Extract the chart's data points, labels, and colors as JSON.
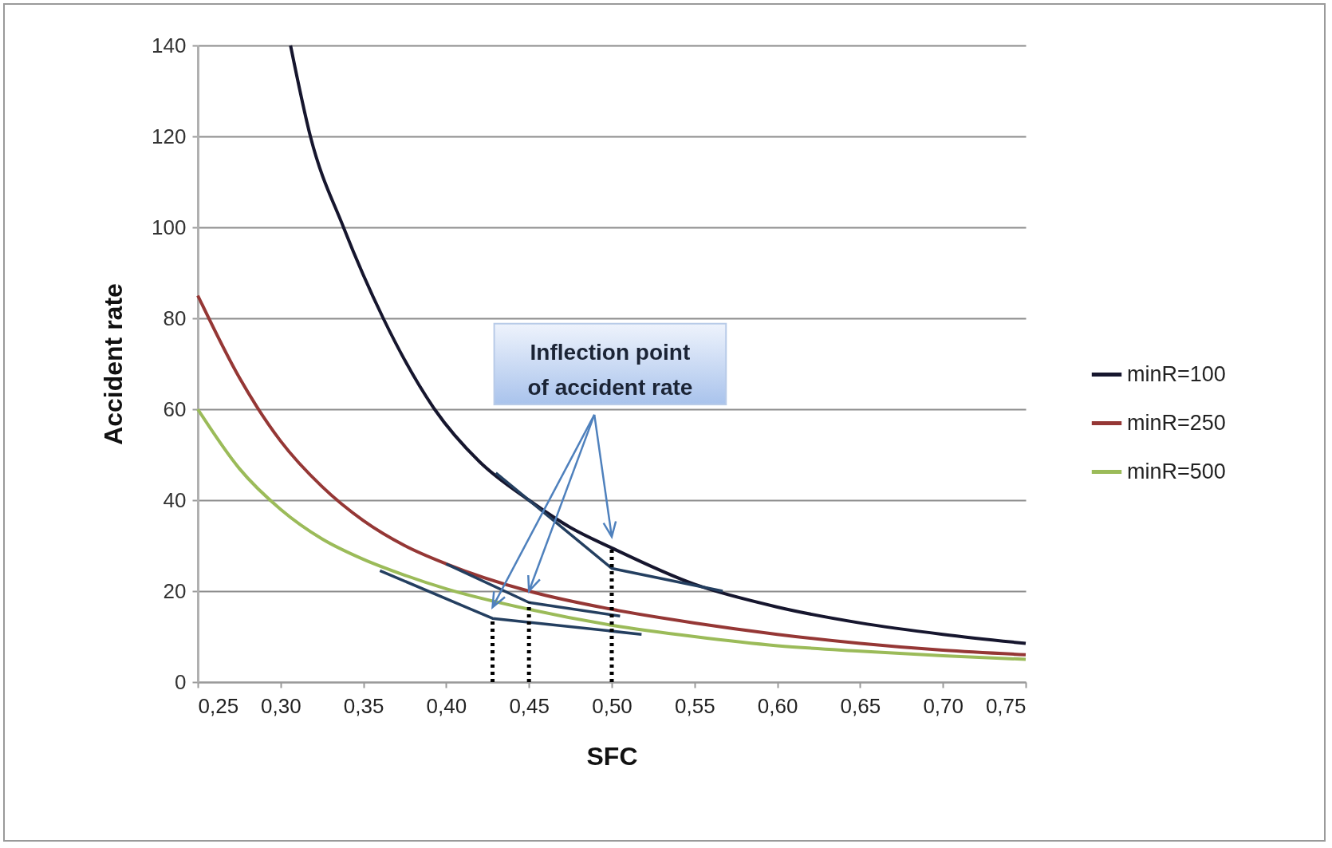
{
  "chart_data": {
    "type": "line",
    "xlabel": "SFC",
    "ylabel": "Accident rate",
    "annotations": [
      {
        "text": "Inflection point of accident rate",
        "x": 0.45,
        "y": 20
      }
    ],
    "xlim": [
      0.25,
      0.75
    ],
    "xticks": [
      {
        "value": 0.25,
        "label": "0,25"
      },
      {
        "value": 0.3,
        "label": "0,30"
      },
      {
        "value": 0.35,
        "label": "0,35"
      },
      {
        "value": 0.4,
        "label": "0,40"
      },
      {
        "value": 0.45,
        "label": "0,45"
      },
      {
        "value": 0.5,
        "label": "0,50"
      },
      {
        "value": 0.55,
        "label": "0,55"
      },
      {
        "value": 0.6,
        "label": "0,60"
      },
      {
        "value": 0.65,
        "label": "0,65"
      },
      {
        "value": 0.7,
        "label": "0,70"
      },
      {
        "value": 0.75,
        "label": "0,75"
      }
    ],
    "ylim": [
      0,
      140
    ],
    "yticks": [
      0,
      20,
      40,
      60,
      80,
      100,
      120,
      140
    ],
    "grid": "y",
    "legend": "right",
    "series": [
      {
        "name": "minR=100",
        "color": "#16162e",
        "x": [
          0.306,
          0.318,
          0.338,
          0.362,
          0.393,
          0.42,
          0.45,
          0.475,
          0.5,
          0.55,
          0.6,
          0.65,
          0.7,
          0.75
        ],
        "values": [
          140,
          120,
          100,
          80,
          60,
          48.5,
          40,
          34,
          29.5,
          21.5,
          16.5,
          13,
          10.5,
          8.5
        ]
      },
      {
        "name": "minR=250",
        "color": "#953735",
        "x": [
          0.25,
          0.275,
          0.3,
          0.325,
          0.35,
          0.375,
          0.4,
          0.45,
          0.5,
          0.55,
          0.6,
          0.65,
          0.7,
          0.75
        ],
        "values": [
          85,
          67,
          53,
          43,
          35.5,
          30,
          26,
          20,
          16,
          13,
          10.5,
          8.5,
          7,
          6
        ]
      },
      {
        "name": "minR=500",
        "color": "#9bbb59",
        "x": [
          0.25,
          0.275,
          0.3,
          0.325,
          0.35,
          0.375,
          0.4,
          0.45,
          0.5,
          0.55,
          0.6,
          0.65,
          0.7,
          0.75
        ],
        "values": [
          60,
          47,
          38,
          31.5,
          27,
          23.5,
          20.5,
          16,
          12.5,
          10,
          8,
          6.8,
          5.8,
          5
        ]
      },
      {
        "color": "#243f60",
        "x": [
          0.43,
          0.5,
          0.567
        ],
        "values": [
          46,
          25,
          20
        ]
      },
      {
        "color": "#243f60",
        "x": [
          0.4,
          0.45,
          0.505
        ],
        "values": [
          26,
          17.5,
          14.5
        ]
      },
      {
        "color": "#243f60",
        "x": [
          0.36,
          0.428,
          0.518
        ],
        "values": [
          24.5,
          14,
          10.5
        ]
      },
      {
        "color": "#000000",
        "line_style": "dotted",
        "x": [
          0.428,
          0.428
        ],
        "values": [
          0,
          14
        ]
      },
      {
        "color": "#000000",
        "line_style": "dotted",
        "x": [
          0.45,
          0.45
        ],
        "values": [
          0,
          17.5
        ]
      },
      {
        "color": "#000000",
        "line_style": "dotted",
        "x": [
          0.5,
          0.5
        ],
        "values": [
          0,
          29.5
        ]
      }
    ]
  }
}
